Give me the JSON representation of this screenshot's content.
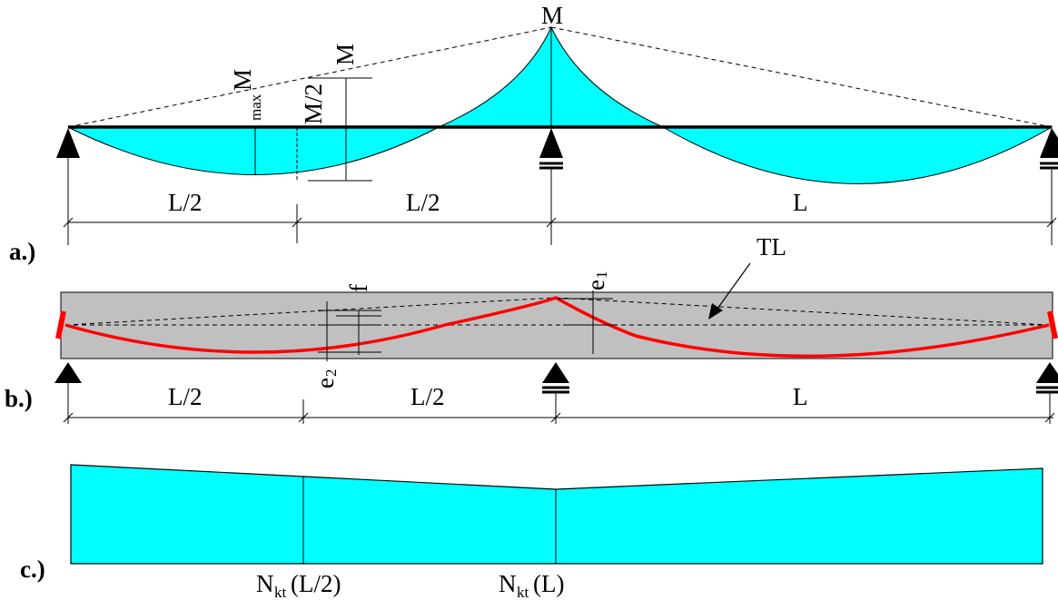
{
  "panels": {
    "a": {
      "tag": "a.)",
      "moment_top_label": "M",
      "mmax_sub": "max",
      "mmax_main": "M",
      "m_half": "M/2",
      "m_right": "M",
      "span_left": "L/2",
      "span_mid": "L/2",
      "span_right": "L"
    },
    "b": {
      "tag": "b.)",
      "tl_label": "TL",
      "f_label": "f",
      "e1_main": "e",
      "e1_sub": "1",
      "e2_main": "e",
      "e2_sub": "2",
      "span_left": "L/2",
      "span_mid": "L/2",
      "span_right": "L"
    },
    "c": {
      "tag": "c.)",
      "n1_main": "N",
      "n1_sub": "kt",
      "n1_arg": "(L/2)",
      "n2_main": "N",
      "n2_sub": "kt",
      "n2_arg": "(L)"
    }
  },
  "colors": {
    "moment_fill": "#00ffff",
    "beam_fill": "#c0c0c0",
    "tendon": "#ff0000",
    "force_fill": "#00ffff"
  }
}
